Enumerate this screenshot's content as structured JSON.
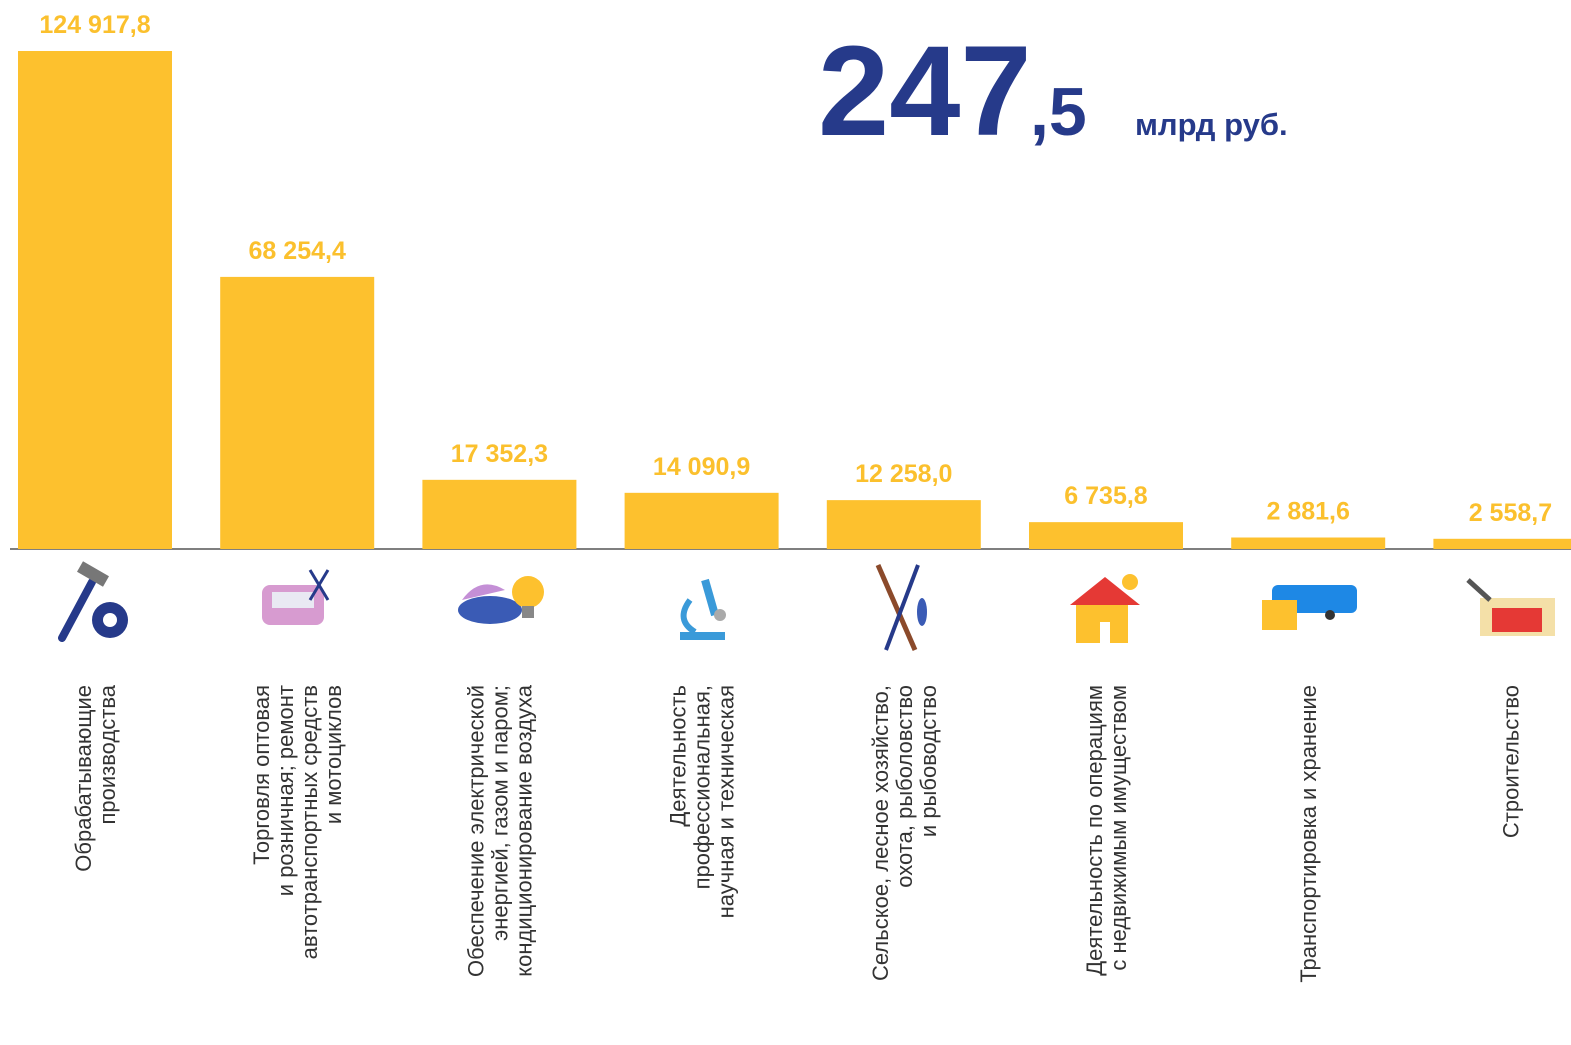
{
  "chart_data": {
    "type": "bar",
    "headline": {
      "integer": "247",
      "fraction": ",5",
      "unit": "млрд руб."
    },
    "categories": [
      "Обрабатывающие\nпроизводства",
      "Торговля оптовая\nи розничная; ремонт\nавтотранспортных средств\nи мотоциклов",
      "Обеспечение электрической\nэнергией, газом и паром;\nкондиционирование воздуха",
      "Деятельность\nпрофессиональная,\nнаучная и техническая",
      "Сельское, лесное хозяйство,\nохота, рыболовство\nи рыбоводство",
      "Деятельность по операциям\nс недвижимым имуществом",
      "Транспортировка и хранение",
      "Строительство"
    ],
    "values": [
      124917.8,
      68254.4,
      17352.3,
      14090.9,
      12258.0,
      6735.8,
      2881.6,
      2558.7
    ],
    "value_labels": [
      "124 917,8",
      "68 254,4",
      "17 352,3",
      "14 090,9",
      "12 258,0",
      "6 735,8",
      "2 881,6",
      "2 558,7"
    ],
    "color": "#fdc12e"
  }
}
